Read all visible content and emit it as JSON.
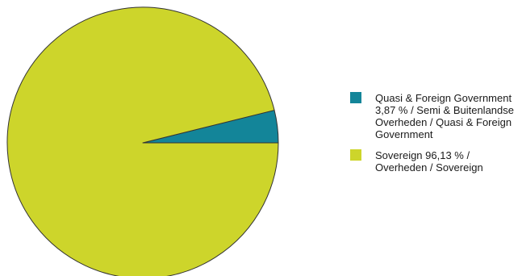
{
  "chart_data": {
    "type": "pie",
    "title": "",
    "start_angle_deg": 0,
    "direction": "counterclockwise",
    "legend_position": "right",
    "slices": [
      {
        "label": "Quasi & Foreign Government 3,87 % / Semi & Buitenlandse Overheden / Quasi & Foreign Government",
        "value": 3.87,
        "color": "#138599"
      },
      {
        "label": "Sovereign 96,13 % / Overheden / Sovereign",
        "value": 96.13,
        "color": "#cdd52b"
      }
    ]
  }
}
